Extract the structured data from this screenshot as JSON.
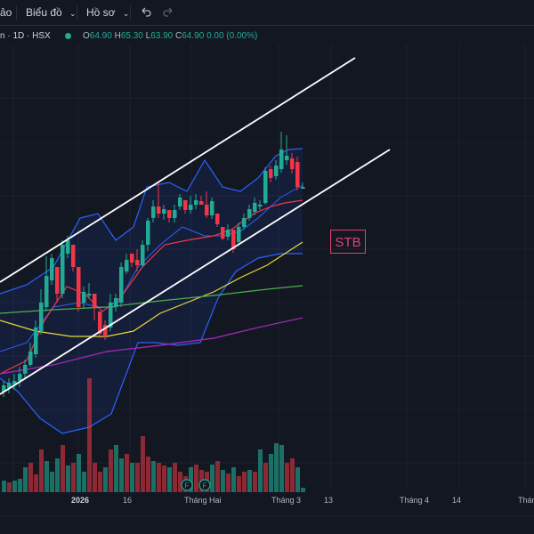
{
  "toolbar": {
    "item0_label": "ảo",
    "chart_type_label": "Biểu đồ",
    "profile_label": "Hồ sơ"
  },
  "legend": {
    "symbol": "n · 1D · HSX",
    "o_key": "O",
    "o_val": "64.90",
    "h_key": "H",
    "h_val": "65.30",
    "l_key": "L",
    "l_val": "63.90",
    "c_key": "C",
    "c_val": "64.90",
    "change": "0.00 (0.00%)"
  },
  "ticker_label": "STB",
  "colors": {
    "up": "#22ab94",
    "down": "#f23645",
    "band": "#2962ff",
    "ma_red": "#f23645",
    "ma_yellow": "#e8d93a",
    "ma_green": "#4caf50",
    "ma_purple": "#9c27b0",
    "trendline": "#ffffff"
  },
  "x_axis": {
    "labels": [
      {
        "text": "2026",
        "bold": true
      },
      {
        "text": "16",
        "bold": false
      },
      {
        "text": "Tháng Hai",
        "bold": false
      },
      {
        "text": "Tháng 3",
        "bold": false
      },
      {
        "text": "13",
        "bold": false
      },
      {
        "text": "Tháng 4",
        "bold": false
      },
      {
        "text": "14",
        "bold": false
      },
      {
        "text": "Tháng",
        "bold": false
      }
    ]
  },
  "volume_badges": [
    "F",
    "F"
  ]
}
